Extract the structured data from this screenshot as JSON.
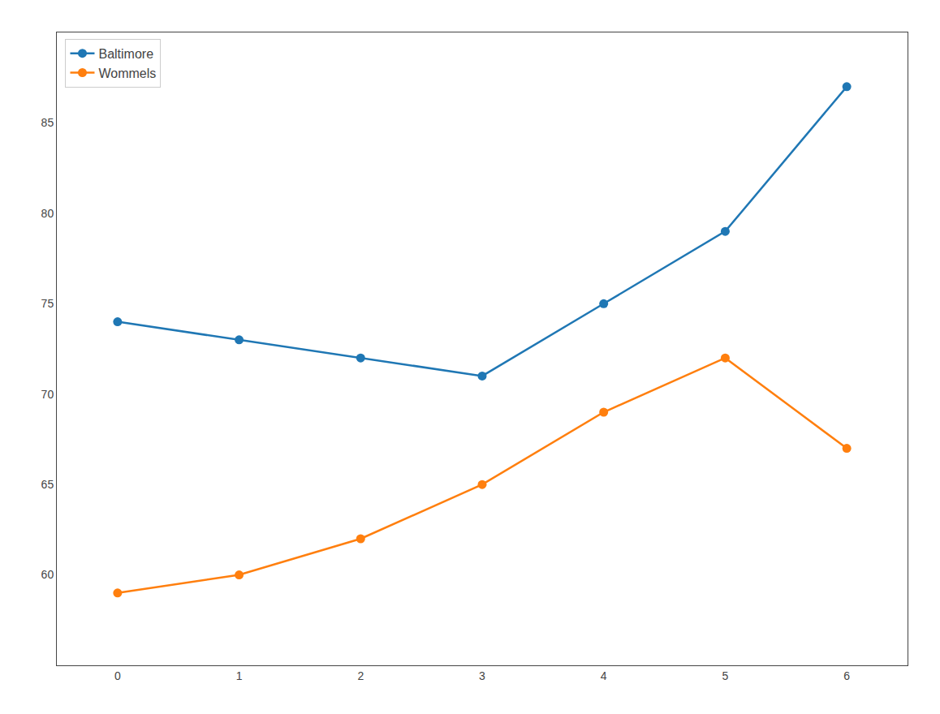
{
  "chart_data": {
    "type": "line",
    "x": [
      0,
      1,
      2,
      3,
      4,
      5,
      6
    ],
    "series": [
      {
        "name": "Baltimore",
        "color": "#1f77b4",
        "values": [
          74,
          73,
          72,
          71,
          75,
          79,
          87
        ]
      },
      {
        "name": "Wommels",
        "color": "#ff7f0e",
        "values": [
          59,
          60,
          62,
          65,
          69,
          72,
          67
        ]
      }
    ],
    "marker": "circle",
    "xlim": [
      -0.5,
      6.5
    ],
    "xticks": [
      0,
      1,
      2,
      3,
      4,
      5,
      6
    ],
    "ylim": [
      55,
      90
    ],
    "yticks": [
      60,
      65,
      70,
      75,
      80,
      85
    ],
    "grid": false,
    "legend": "upper left"
  }
}
